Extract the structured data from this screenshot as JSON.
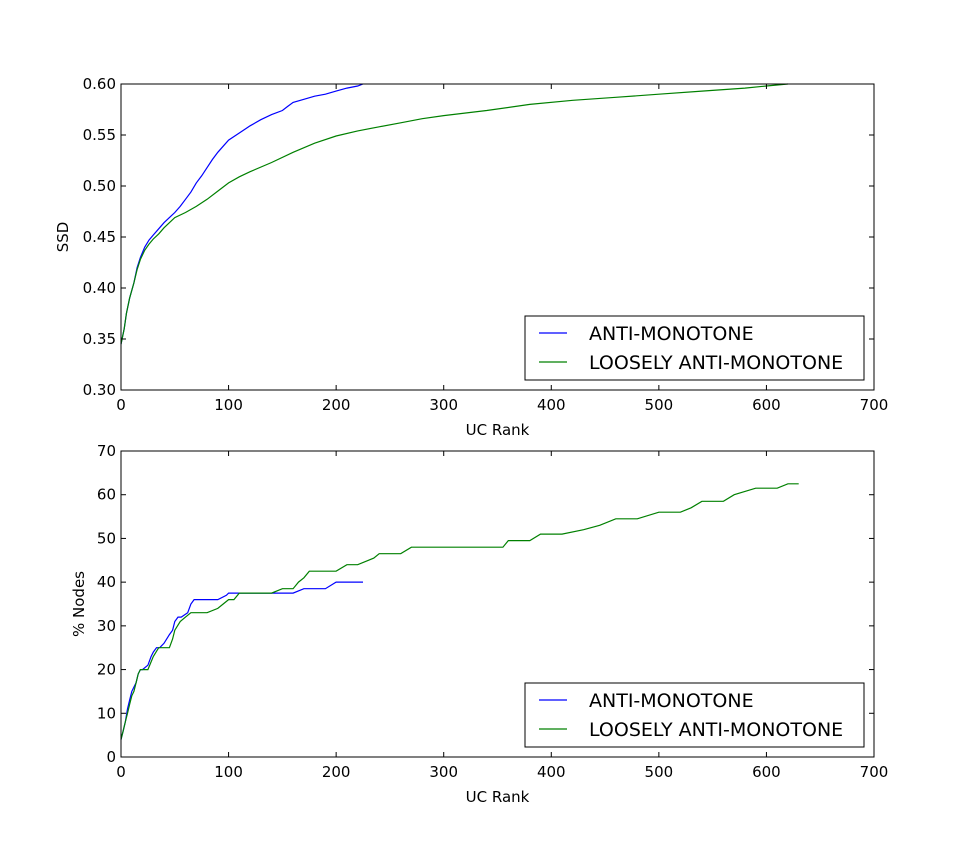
{
  "chart_data": [
    {
      "type": "line",
      "xlabel": "UC Rank",
      "ylabel": "SSD",
      "xlim": [
        0,
        700
      ],
      "ylim": [
        0.3,
        0.6
      ],
      "xticks": [
        0,
        100,
        200,
        300,
        400,
        500,
        600,
        700
      ],
      "yticks": [
        0.3,
        0.35,
        0.4,
        0.45,
        0.5,
        0.55,
        0.6
      ],
      "ytick_labels": [
        "0.30",
        "0.35",
        "0.40",
        "0.45",
        "0.50",
        "0.55",
        "0.60"
      ],
      "grid": false,
      "legend": "lower right",
      "series": [
        {
          "name": "ANTI-MONOTONE",
          "color": "#0000ff",
          "x": [
            0,
            3,
            5,
            8,
            12,
            15,
            18,
            22,
            26,
            30,
            35,
            40,
            45,
            50,
            55,
            60,
            65,
            70,
            75,
            80,
            85,
            90,
            95,
            100,
            110,
            120,
            130,
            140,
            150,
            155,
            160,
            170,
            180,
            190,
            200,
            210,
            220,
            225
          ],
          "y": [
            0.345,
            0.36,
            0.375,
            0.39,
            0.405,
            0.42,
            0.43,
            0.44,
            0.447,
            0.452,
            0.458,
            0.464,
            0.469,
            0.474,
            0.48,
            0.487,
            0.494,
            0.503,
            0.51,
            0.518,
            0.526,
            0.533,
            0.539,
            0.545,
            0.552,
            0.559,
            0.565,
            0.57,
            0.574,
            0.578,
            0.582,
            0.585,
            0.588,
            0.59,
            0.593,
            0.596,
            0.598,
            0.6
          ]
        },
        {
          "name": "LOOSELY ANTI-MONOTONE",
          "color": "#008000",
          "x": [
            0,
            3,
            5,
            8,
            12,
            15,
            18,
            22,
            26,
            30,
            35,
            40,
            45,
            50,
            60,
            70,
            80,
            90,
            100,
            110,
            120,
            140,
            160,
            180,
            200,
            220,
            240,
            260,
            280,
            300,
            340,
            380,
            420,
            460,
            500,
            540,
            580,
            600,
            620
          ],
          "y": [
            0.345,
            0.36,
            0.375,
            0.39,
            0.405,
            0.418,
            0.428,
            0.437,
            0.443,
            0.448,
            0.453,
            0.459,
            0.464,
            0.469,
            0.474,
            0.48,
            0.487,
            0.495,
            0.503,
            0.509,
            0.514,
            0.523,
            0.533,
            0.542,
            0.549,
            0.554,
            0.558,
            0.562,
            0.566,
            0.569,
            0.574,
            0.58,
            0.584,
            0.587,
            0.59,
            0.593,
            0.596,
            0.598,
            0.6
          ]
        }
      ]
    },
    {
      "type": "line",
      "xlabel": "UC Rank",
      "ylabel": "% Nodes",
      "xlim": [
        0,
        700
      ],
      "ylim": [
        0,
        70
      ],
      "xticks": [
        0,
        100,
        200,
        300,
        400,
        500,
        600,
        700
      ],
      "yticks": [
        0,
        10,
        20,
        30,
        40,
        50,
        60,
        70
      ],
      "ytick_labels": [
        "0",
        "10",
        "20",
        "30",
        "40",
        "50",
        "60",
        "70"
      ],
      "grid": false,
      "legend": "lower right",
      "series": [
        {
          "name": "ANTI-MONOTONE",
          "color": "#0000ff",
          "x": [
            0,
            2,
            4,
            6,
            8,
            10,
            12,
            14,
            16,
            18,
            20,
            25,
            28,
            30,
            33,
            36,
            40,
            45,
            48,
            50,
            53,
            56,
            62,
            65,
            68,
            72,
            80,
            90,
            98,
            100,
            110,
            120,
            130,
            140,
            150,
            160,
            170,
            175,
            190,
            200,
            210,
            225
          ],
          "y": [
            4,
            6,
            8,
            11,
            13,
            15,
            16,
            17,
            19,
            20,
            20,
            21,
            23,
            24,
            25,
            25,
            26,
            28,
            29,
            31,
            32,
            32,
            33,
            35,
            36,
            36,
            36,
            36,
            37,
            37.5,
            37.5,
            37.5,
            37.5,
            37.5,
            37.5,
            37.5,
            38.5,
            38.5,
            38.5,
            40,
            40,
            40
          ]
        },
        {
          "name": "LOOSELY ANTI-MONOTONE",
          "color": "#008000",
          "x": [
            0,
            2,
            4,
            6,
            8,
            10,
            12,
            14,
            16,
            18,
            20,
            25,
            30,
            35,
            40,
            45,
            48,
            50,
            55,
            60,
            65,
            70,
            80,
            90,
            95,
            100,
            105,
            110,
            120,
            130,
            140,
            150,
            160,
            165,
            170,
            175,
            190,
            200,
            210,
            220,
            230,
            235,
            240,
            250,
            260,
            270,
            300,
            330,
            355,
            360,
            380,
            390,
            410,
            430,
            445,
            460,
            480,
            500,
            520,
            530,
            540,
            560,
            570,
            590,
            610,
            620,
            630
          ],
          "y": [
            4,
            6,
            8,
            10,
            12,
            14,
            15,
            17,
            19,
            20,
            20,
            20,
            23,
            25,
            25,
            25,
            27,
            29,
            31,
            32,
            33,
            33,
            33,
            34,
            35,
            36,
            36,
            37.5,
            37.5,
            37.5,
            37.5,
            38.5,
            38.5,
            40,
            41,
            42.5,
            42.5,
            42.5,
            44,
            44,
            45,
            45.5,
            46.5,
            46.5,
            46.5,
            48,
            48,
            48,
            48,
            49.5,
            49.5,
            51,
            51,
            52,
            53,
            54.5,
            54.5,
            56,
            56,
            57,
            58.5,
            58.5,
            60,
            61.5,
            61.5,
            62.5,
            62.5
          ]
        }
      ]
    }
  ]
}
